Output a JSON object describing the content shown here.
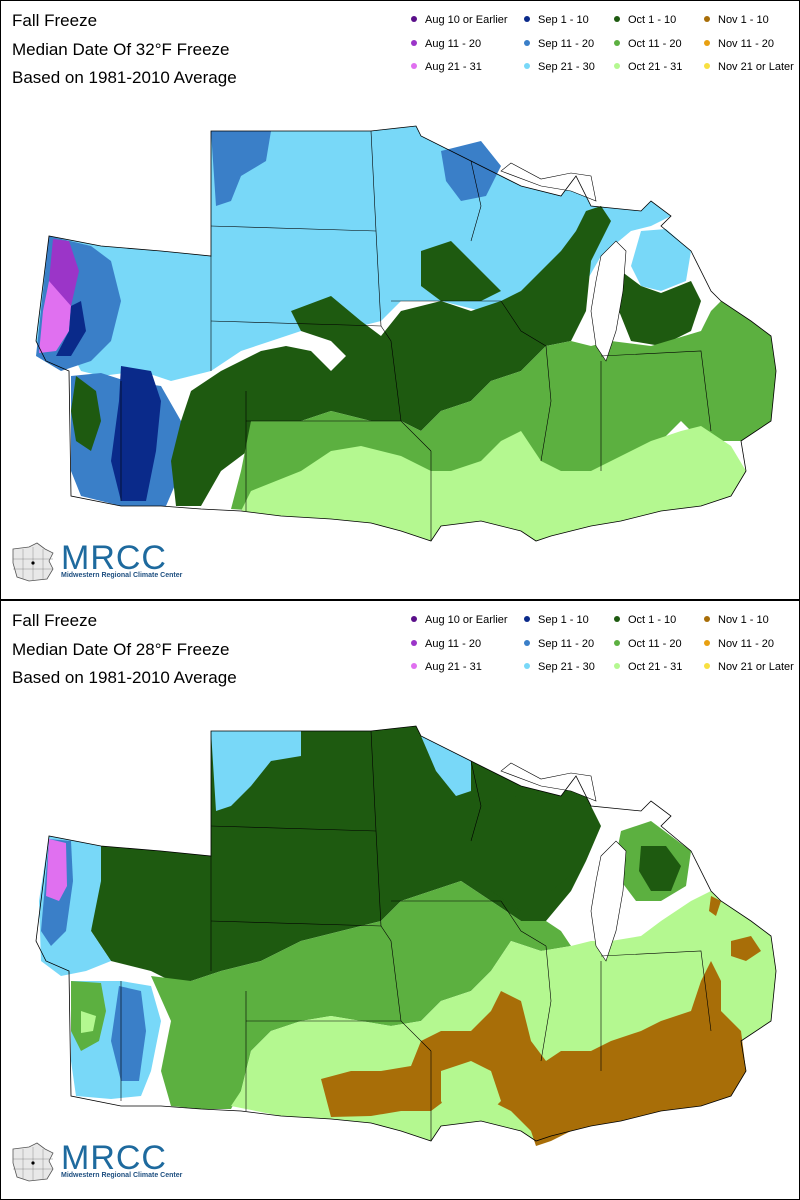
{
  "panels": [
    {
      "title": "Fall Freeze",
      "subtitle": "Median Date Of 32°F Freeze",
      "basis": "Based on 1981-2010 Average"
    },
    {
      "title": "Fall Freeze",
      "subtitle": "Median Date Of 28°F Freeze",
      "basis": "Based on 1981-2010 Average"
    }
  ],
  "legend": [
    {
      "label": "Aug 10 or Earlier",
      "color": "#5a0f8a"
    },
    {
      "label": "Aug 11 - 20",
      "color": "#9b35c8"
    },
    {
      "label": "Aug 21 - 31",
      "color": "#e070f0"
    },
    {
      "label": "Sep 1 - 10",
      "color": "#0a2a8a"
    },
    {
      "label": "Sep 11 - 20",
      "color": "#3a7fc8"
    },
    {
      "label": "Sep 21 - 30",
      "color": "#78d8f8"
    },
    {
      "label": "Oct 1 - 10",
      "color": "#1e5a10"
    },
    {
      "label": "Oct 11 - 20",
      "color": "#5cb040"
    },
    {
      "label": "Oct 21 - 31",
      "color": "#b4f890"
    },
    {
      "label": "Nov 1 - 10",
      "color": "#a86e08"
    },
    {
      "label": "Nov 11 - 20",
      "color": "#e8a010"
    },
    {
      "label": "Nov 21 or Later",
      "color": "#f8e040"
    }
  ],
  "logo": {
    "name": "MRCC",
    "full_name": "Midwestern Regional Climate Center"
  }
}
